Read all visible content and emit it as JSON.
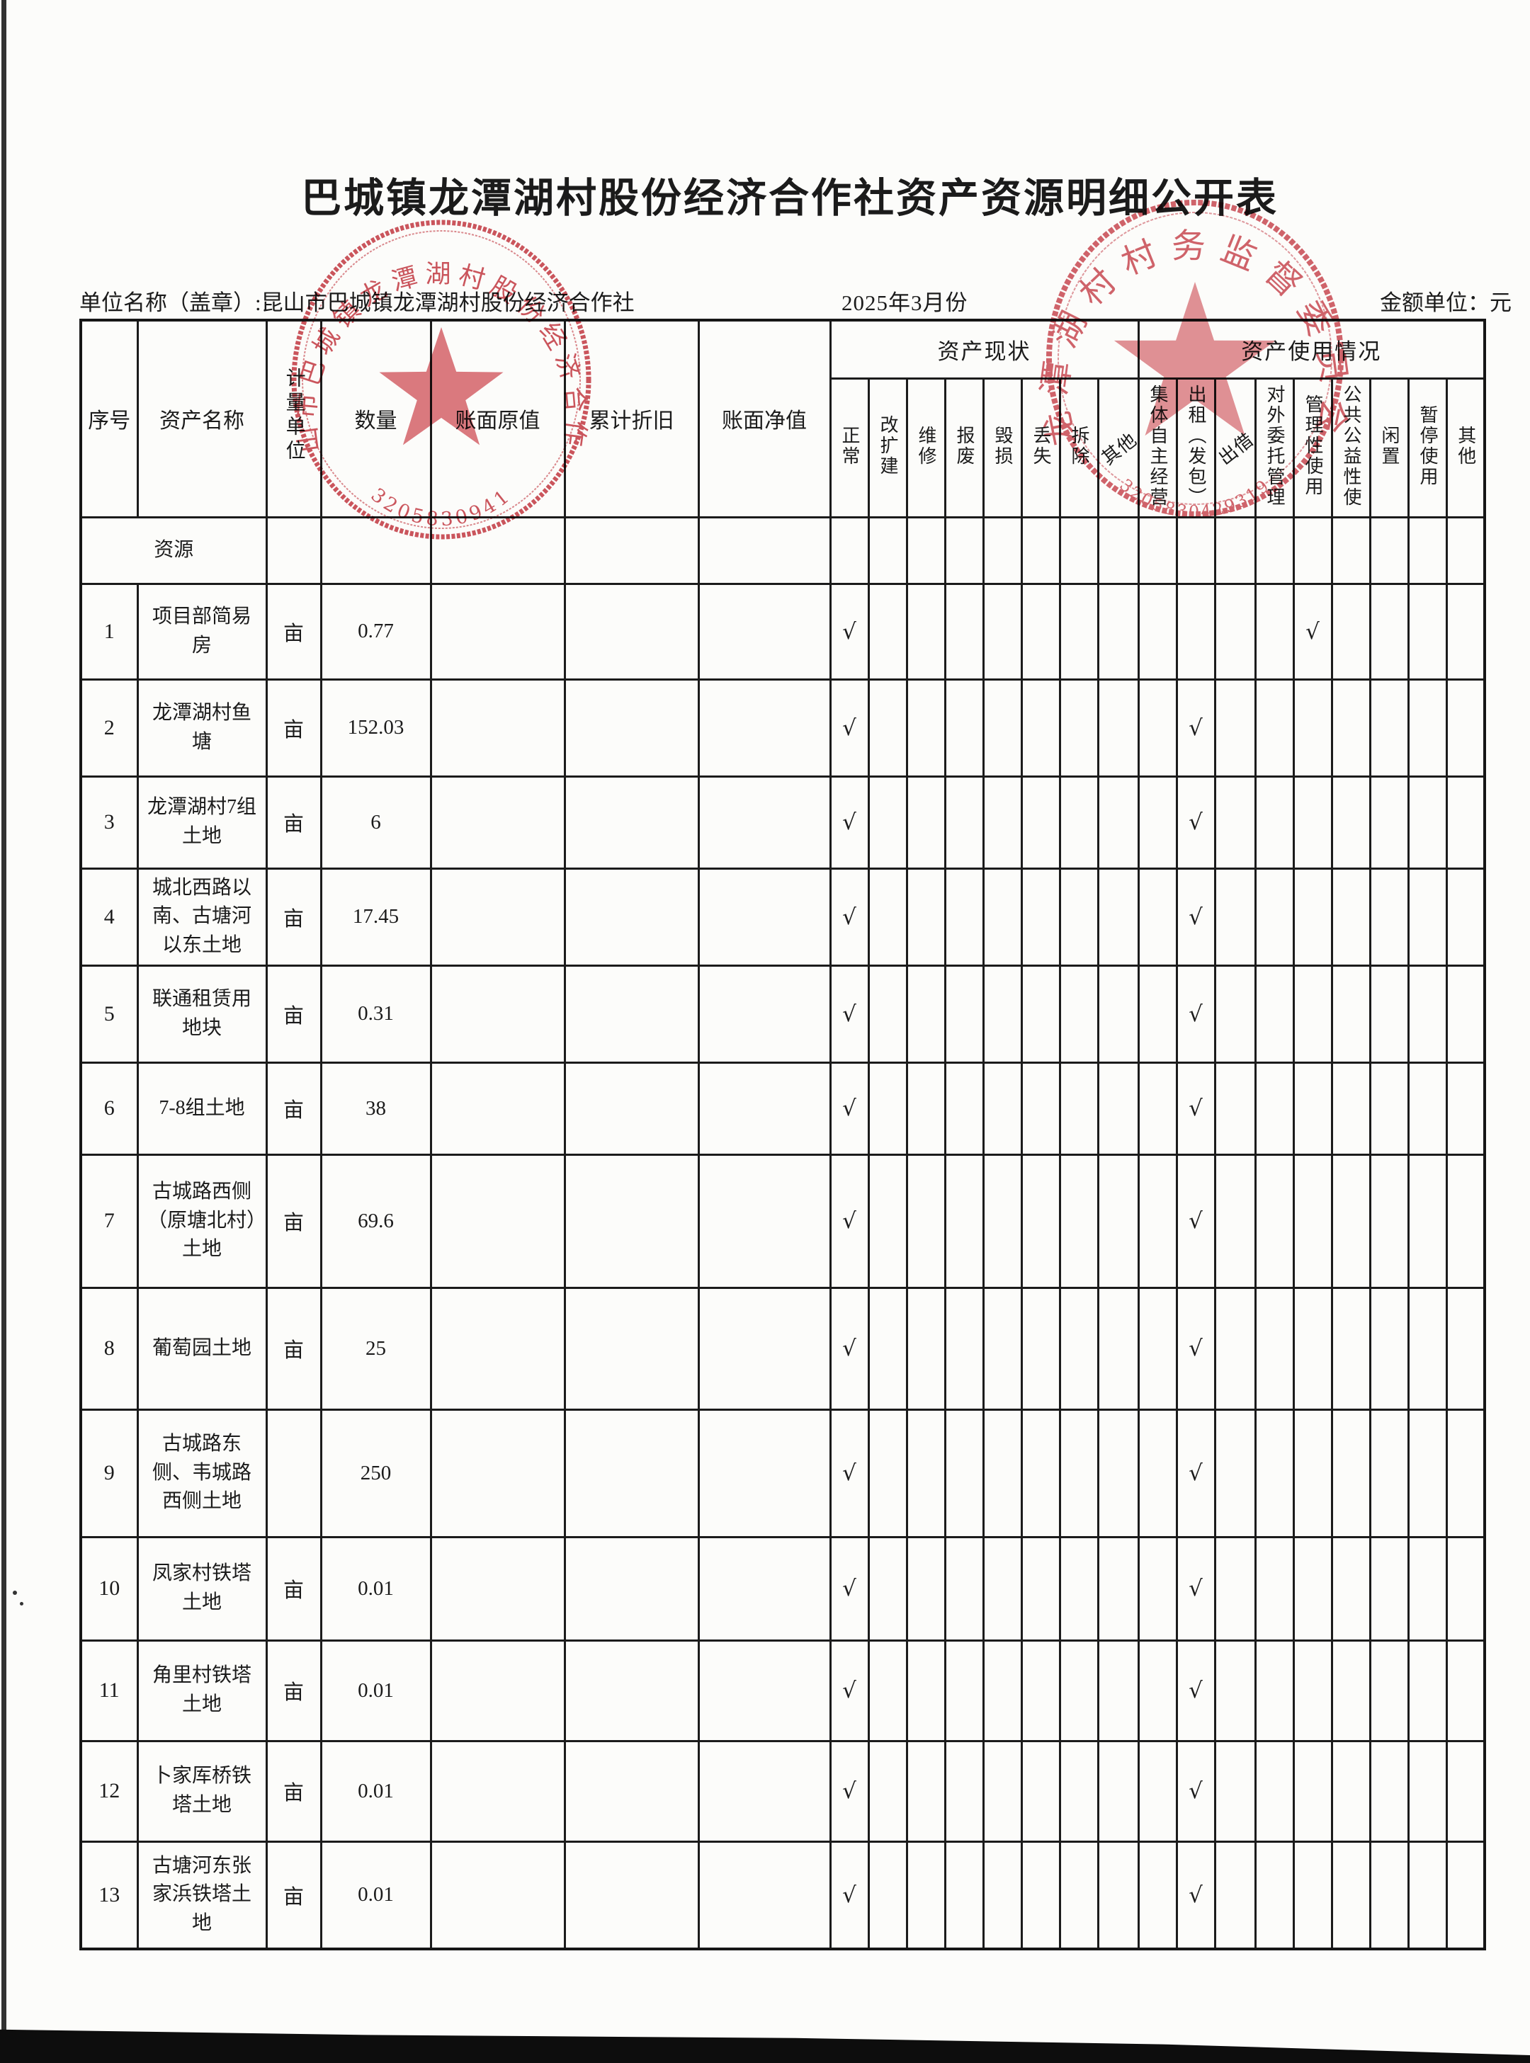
{
  "page": {
    "title": "巴城镇龙潭湖村股份经济合作社资产资源明细公开表",
    "unit_line": "单位名称（盖章）:昆山市巴城镇龙潭湖村股份经济合作社",
    "period": "2025年3月份",
    "amount_unit": "金额单位：元"
  },
  "stamps": {
    "color": "#c53842",
    "left": {
      "ring_text": "昆山市巴城镇龙潭湖村股份经济合作社",
      "serial": "3205830941"
    },
    "right": {
      "ring_text": "龙潭湖村村务监督委员会",
      "serial": "3205830429319"
    }
  },
  "table": {
    "main_headers": {
      "serial": "序号",
      "asset_name": "资产名称",
      "unit": "计量单位",
      "quantity": "数量",
      "original_value": "账面原值",
      "accumulated_depreciation": "累计折旧",
      "net_value": "账面净值",
      "status_group": "资产现状",
      "usage_group": "资产使用情况"
    },
    "status_cols": [
      "正常",
      "改扩建",
      "维修",
      "报废",
      "毁损",
      "丢失",
      "拆除",
      "其他"
    ],
    "usage_cols": [
      "集体自主经营",
      "出租（发包）",
      "出借",
      "对外委托管理",
      "管理性使用",
      "公共公益性使",
      "闲置",
      "暂停使用",
      "其他"
    ],
    "checkmark": "√",
    "section_label": "资源",
    "rows": [
      {
        "section": true,
        "name": "资源",
        "unit": "",
        "qty": "",
        "checks": []
      },
      {
        "no": "1",
        "name": "项目部简易房",
        "unit": "亩",
        "qty": "0.77",
        "checks": [
          0,
          12
        ]
      },
      {
        "no": "2",
        "name": "龙潭湖村鱼塘",
        "unit": "亩",
        "qty": "152.03",
        "checks": [
          0,
          9
        ]
      },
      {
        "no": "3",
        "name": "龙潭湖村7组土地",
        "unit": "亩",
        "qty": "6",
        "checks": [
          0,
          9
        ]
      },
      {
        "no": "4",
        "name": "城北西路以南、古塘河以东土地",
        "unit": "亩",
        "qty": "17.45",
        "checks": [
          0,
          9
        ]
      },
      {
        "no": "5",
        "name": "联通租赁用地块",
        "unit": "亩",
        "qty": "0.31",
        "checks": [
          0,
          9
        ]
      },
      {
        "no": "6",
        "name": "7-8组土地",
        "unit": "亩",
        "qty": "38",
        "checks": [
          0,
          9
        ]
      },
      {
        "no": "7",
        "name": "古城路西侧（原塘北村）土地",
        "unit": "亩",
        "qty": "69.6",
        "checks": [
          0,
          9
        ]
      },
      {
        "no": "8",
        "name": "葡萄园土地",
        "unit": "亩",
        "qty": "25",
        "checks": [
          0,
          9
        ]
      },
      {
        "no": "9",
        "name": "古城路东侧、韦城路西侧土地",
        "unit": "",
        "qty": "250",
        "checks": [
          0,
          9
        ]
      },
      {
        "no": "10",
        "name": "凤家村铁塔土地",
        "unit": "亩",
        "qty": "0.01",
        "checks": [
          0,
          9
        ]
      },
      {
        "no": "11",
        "name": "角里村铁塔土地",
        "unit": "亩",
        "qty": "0.01",
        "checks": [
          0,
          9
        ]
      },
      {
        "no": "12",
        "name": "卜家厍桥铁塔土地",
        "unit": "亩",
        "qty": "0.01",
        "checks": [
          0,
          9
        ]
      },
      {
        "no": "13",
        "name": "古塘河东张家浜铁塔土地",
        "unit": "亩",
        "qty": "0.01",
        "checks": [
          0,
          9
        ]
      }
    ]
  }
}
